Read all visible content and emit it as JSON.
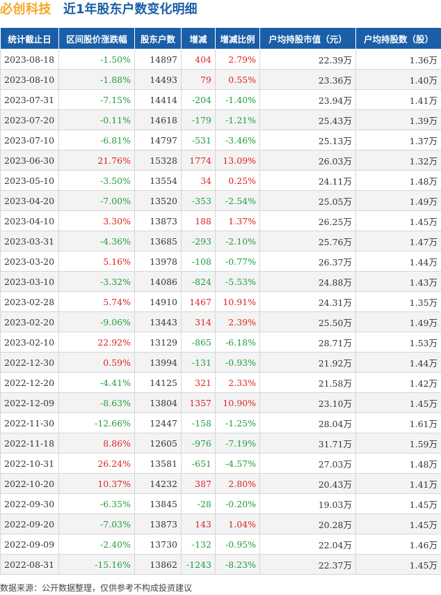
{
  "title": {
    "company": "必创科技",
    "subtitle": "近1年股东户数变化明细"
  },
  "table": {
    "headers": [
      "统计截止日",
      "区间股价涨跌幅",
      "股东户数",
      "增减",
      "增减比例",
      "户均持股市值（元）",
      "户均持股数（股）"
    ],
    "rows": [
      [
        "2023-08-18",
        "-1.50%",
        "14897",
        "404",
        "2.79%",
        "22.39万",
        "1.36万"
      ],
      [
        "2023-08-10",
        "-1.88%",
        "14493",
        "79",
        "0.55%",
        "23.36万",
        "1.40万"
      ],
      [
        "2023-07-31",
        "-7.15%",
        "14414",
        "-204",
        "-1.40%",
        "23.94万",
        "1.41万"
      ],
      [
        "2023-07-20",
        "-0.11%",
        "14618",
        "-179",
        "-1.21%",
        "25.43万",
        "1.39万"
      ],
      [
        "2023-07-10",
        "-6.81%",
        "14797",
        "-531",
        "-3.46%",
        "25.13万",
        "1.37万"
      ],
      [
        "2023-06-30",
        "21.76%",
        "15328",
        "1774",
        "13.09%",
        "26.03万",
        "1.32万"
      ],
      [
        "2023-05-10",
        "-3.50%",
        "13554",
        "34",
        "0.25%",
        "24.11万",
        "1.48万"
      ],
      [
        "2023-04-20",
        "-7.00%",
        "13520",
        "-353",
        "-2.54%",
        "25.05万",
        "1.49万"
      ],
      [
        "2023-04-10",
        "3.30%",
        "13873",
        "188",
        "1.37%",
        "26.25万",
        "1.45万"
      ],
      [
        "2023-03-31",
        "-4.36%",
        "13685",
        "-293",
        "-2.10%",
        "25.76万",
        "1.47万"
      ],
      [
        "2023-03-20",
        "5.16%",
        "13978",
        "-108",
        "-0.77%",
        "26.37万",
        "1.44万"
      ],
      [
        "2023-03-10",
        "-3.32%",
        "14086",
        "-824",
        "-5.53%",
        "24.88万",
        "1.43万"
      ],
      [
        "2023-02-28",
        "5.74%",
        "14910",
        "1467",
        "10.91%",
        "24.31万",
        "1.35万"
      ],
      [
        "2023-02-20",
        "-9.06%",
        "13443",
        "314",
        "2.39%",
        "25.50万",
        "1.49万"
      ],
      [
        "2023-02-10",
        "22.92%",
        "13129",
        "-865",
        "-6.18%",
        "28.71万",
        "1.53万"
      ],
      [
        "2022-12-30",
        "0.59%",
        "13994",
        "-131",
        "-0.93%",
        "21.92万",
        "1.44万"
      ],
      [
        "2022-12-20",
        "-4.41%",
        "14125",
        "321",
        "2.33%",
        "21.58万",
        "1.42万"
      ],
      [
        "2022-12-09",
        "-8.63%",
        "13804",
        "1357",
        "10.90%",
        "23.10万",
        "1.45万"
      ],
      [
        "2022-11-30",
        "-12.66%",
        "12447",
        "-158",
        "-1.25%",
        "28.04万",
        "1.61万"
      ],
      [
        "2022-11-18",
        "8.86%",
        "12605",
        "-976",
        "-7.19%",
        "31.71万",
        "1.59万"
      ],
      [
        "2022-10-31",
        "26.24%",
        "13581",
        "-651",
        "-4.57%",
        "27.03万",
        "1.48万"
      ],
      [
        "2022-10-20",
        "10.37%",
        "14232",
        "387",
        "2.80%",
        "20.43万",
        "1.41万"
      ],
      [
        "2022-09-30",
        "-6.35%",
        "13845",
        "-28",
        "-0.20%",
        "19.03万",
        "1.45万"
      ],
      [
        "2022-09-20",
        "-7.03%",
        "13873",
        "143",
        "1.04%",
        "20.28万",
        "1.45万"
      ],
      [
        "2022-09-09",
        "-2.40%",
        "13730",
        "-132",
        "-0.95%",
        "22.04万",
        "1.46万"
      ],
      [
        "2022-08-31",
        "-15.16%",
        "13862",
        "-1243",
        "-8.23%",
        "22.37万",
        "1.45万"
      ]
    ]
  },
  "colors": {
    "up": "#e02020",
    "down": "#1e9e3a",
    "header_bg": "#1a5ea8",
    "company": "#f5a623"
  },
  "footer": "数据来源：公开数据整理，仅供参考不构成投资建议"
}
